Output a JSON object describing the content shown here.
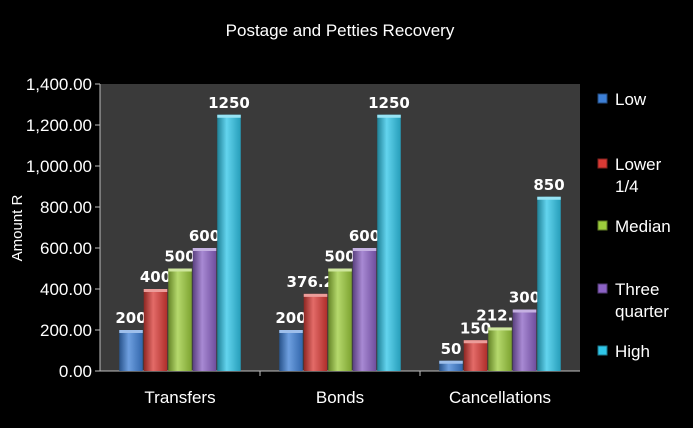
{
  "chart_data": {
    "type": "bar",
    "title": "Postage and Petties Recovery",
    "xlabel": "",
    "ylabel": "Amount R",
    "categories": [
      "Transfers",
      "Bonds",
      "Cancellations"
    ],
    "ylim": [
      0,
      1400
    ],
    "yticks": [
      "0.00",
      "200.00",
      "400.00",
      "600.00",
      "800.00",
      "1,000.00",
      "1,200.00",
      "1,400.00"
    ],
    "grid": false,
    "legend_position": "right",
    "series": [
      {
        "name": "Low",
        "color": "#3d7fd6",
        "values": [
          200,
          200,
          50
        ],
        "labels": [
          "200",
          "200",
          "50"
        ]
      },
      {
        "name": "Lower 1/4",
        "color": "#d93a35",
        "values": [
          400,
          376.25,
          150
        ],
        "labels": [
          "400",
          "376.25",
          "150"
        ]
      },
      {
        "name": "Median",
        "color": "#9ccc3c",
        "values": [
          500,
          500,
          212.5
        ],
        "labels": [
          "500",
          "500",
          "212.5"
        ]
      },
      {
        "name": "Three quarter",
        "color": "#8b62c4",
        "values": [
          600,
          600,
          300
        ],
        "labels": [
          "600",
          "600",
          "300"
        ]
      },
      {
        "name": "High",
        "color": "#2fc6e8",
        "values": [
          1250,
          1250,
          850
        ],
        "labels": [
          "1250",
          "1250",
          "850"
        ]
      }
    ]
  }
}
